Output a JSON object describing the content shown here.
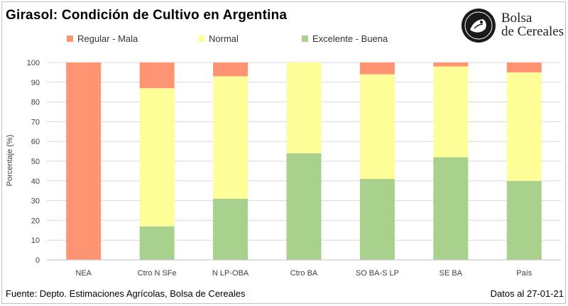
{
  "title": "Girasol: Condición de Cultivo en Argentina",
  "logo": {
    "line1": "Bolsa",
    "line2": "de Cereales"
  },
  "footer": {
    "source": "Fuente: Depto. Estimaciones Agrícolas, Bolsa de Cereales",
    "date": "Datos al 27-01-21"
  },
  "chart_data": {
    "type": "bar",
    "stacked": true,
    "ylabel": "Porcentaje (%)",
    "ylim": [
      0,
      100
    ],
    "yticks": [
      0,
      10,
      20,
      30,
      40,
      50,
      60,
      70,
      80,
      90,
      100
    ],
    "grid": true,
    "legend_position": "top",
    "categories": [
      "NEA",
      "Ctro N SFe",
      "N LP-OBA",
      "Ctro BA",
      "SO BA-S LP",
      "SE BA",
      "País"
    ],
    "series": [
      {
        "name": "Excelente - Buena",
        "color": "#a9d18e",
        "values": [
          0,
          17,
          31,
          54,
          41,
          52,
          40
        ]
      },
      {
        "name": "Normal",
        "color": "#ffff99",
        "values": [
          0,
          70,
          62,
          46,
          53,
          46,
          55
        ]
      },
      {
        "name": "Regular - Mala",
        "color": "#ff9473",
        "values": [
          100,
          13,
          7,
          0,
          6,
          2,
          5
        ]
      }
    ],
    "legend_order": [
      "Regular - Mala",
      "Normal",
      "Excelente - Buena"
    ]
  }
}
